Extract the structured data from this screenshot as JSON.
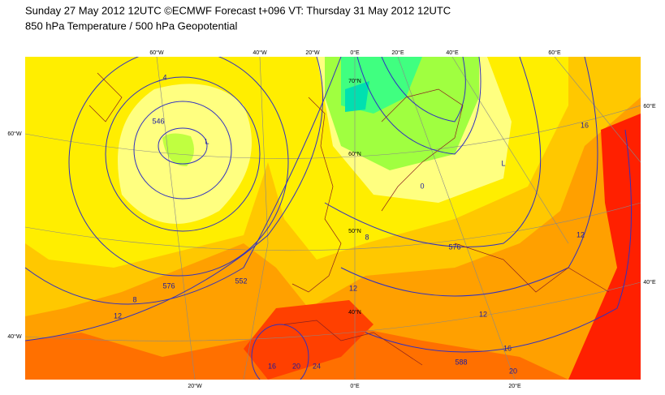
{
  "header": {
    "title": "Sunday 27 May 2012 12UTC ©ECMWF Forecast t+096 VT: Thursday 31 May 2012 12UTC",
    "subtitle": "850 hPa Temperature / 500 hPa Geopotential"
  },
  "map": {
    "top_longitudes": [
      "60°W",
      "40°W",
      "20°W",
      "0°E",
      "20°E",
      "40°E",
      "60°E"
    ],
    "bottom_longitudes": [
      "20°W",
      "0°E",
      "20°E"
    ],
    "left_latitudes": [
      "60°W",
      "40°W"
    ],
    "right_latitudes": [
      "60°E",
      "40°E"
    ],
    "inner_latitudes": [
      "70°N",
      "60°N",
      "50°N",
      "40°N"
    ],
    "contour_labels": [
      "4",
      "546",
      "L",
      "576",
      "8",
      "12",
      "552",
      "8",
      "12",
      "576",
      "12",
      "16",
      "12",
      "16",
      "588",
      "20",
      "24",
      "20",
      "16",
      "L",
      "0"
    ]
  }
}
